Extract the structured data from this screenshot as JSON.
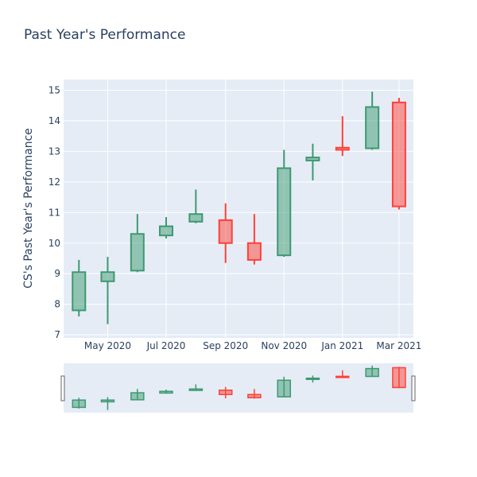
{
  "chart_data": {
    "type": "candlestick",
    "title": "Past Year's Performance",
    "ylabel": "CS's Past Year's Performance",
    "xlabel": "",
    "ylim": [
      6.9,
      15.35
    ],
    "y_ticks": [
      7,
      8,
      9,
      10,
      11,
      12,
      13,
      14,
      15
    ],
    "x_ticks": [
      {
        "label": "May 2020",
        "date": "2020-05-01"
      },
      {
        "label": "Jul 2020",
        "date": "2020-07-01"
      },
      {
        "label": "Sep 2020",
        "date": "2020-09-01"
      },
      {
        "label": "Nov 2020",
        "date": "2020-11-01"
      },
      {
        "label": "Jan 2021",
        "date": "2021-01-01"
      },
      {
        "label": "Mar 2021",
        "date": "2021-03-01"
      }
    ],
    "x_range": [
      "2020-03-16",
      "2021-03-16"
    ],
    "increasing_color": "#3d9970",
    "decreasing_color": "#ff4136",
    "grid": true,
    "rangeslider": true,
    "candles": [
      {
        "date": "2020-04-01",
        "open": 7.8,
        "high": 9.45,
        "low": 7.6,
        "close": 9.05
      },
      {
        "date": "2020-05-01",
        "open": 8.75,
        "high": 9.55,
        "low": 7.35,
        "close": 9.05
      },
      {
        "date": "2020-06-01",
        "open": 9.1,
        "high": 10.95,
        "low": 9.05,
        "close": 10.3
      },
      {
        "date": "2020-07-01",
        "open": 10.25,
        "high": 10.85,
        "low": 10.15,
        "close": 10.55
      },
      {
        "date": "2020-08-01",
        "open": 10.7,
        "high": 11.75,
        "low": 10.65,
        "close": 10.95
      },
      {
        "date": "2020-09-01",
        "open": 10.75,
        "high": 11.3,
        "low": 9.35,
        "close": 10.0
      },
      {
        "date": "2020-10-01",
        "open": 10.0,
        "high": 10.95,
        "low": 9.3,
        "close": 9.45
      },
      {
        "date": "2020-11-01",
        "open": 9.6,
        "high": 13.05,
        "low": 9.55,
        "close": 12.45
      },
      {
        "date": "2020-12-01",
        "open": 12.7,
        "high": 13.25,
        "low": 12.05,
        "close": 12.8
      },
      {
        "date": "2021-01-01",
        "open": 13.12,
        "high": 14.15,
        "low": 12.85,
        "close": 13.05
      },
      {
        "date": "2021-02-01",
        "open": 13.1,
        "high": 14.95,
        "low": 13.05,
        "close": 14.45
      },
      {
        "date": "2021-03-01",
        "open": 14.6,
        "high": 14.75,
        "low": 11.1,
        "close": 11.2
      }
    ]
  }
}
